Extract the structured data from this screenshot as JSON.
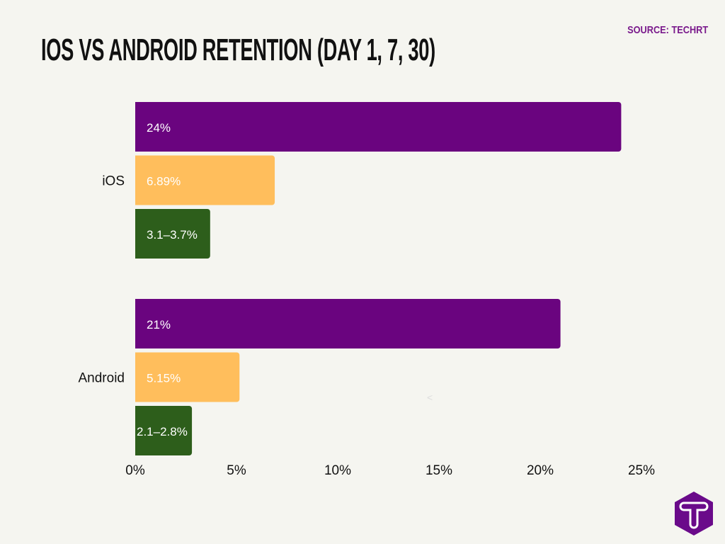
{
  "chart_data": {
    "type": "bar",
    "orientation": "horizontal",
    "title": "IOS VS ANDROID RETENTION (DAY 1, 7, 30)",
    "source": "SOURCE: TECHRT",
    "categories": [
      "iOS",
      "Android"
    ],
    "series": [
      {
        "values": [
          24,
          21
        ],
        "labels": [
          "24%",
          "21%"
        ],
        "color": "#6a047f"
      },
      {
        "values": [
          6.89,
          5.15
        ],
        "labels": [
          "6.89%",
          "5.15%"
        ],
        "color": "#ffbe5c"
      },
      {
        "values": [
          [
            3.1,
            3.7
          ],
          [
            2.1,
            2.8
          ]
        ],
        "labels": [
          "3.1–3.7%",
          "2.1–2.8%"
        ],
        "color": "#2d5e1b"
      }
    ],
    "xlim": [
      0,
      25
    ],
    "xticks": [
      0,
      5,
      10,
      15,
      20,
      25
    ],
    "xtick_labels": [
      "0%",
      "5%",
      "10%",
      "15%",
      "20%",
      "25%"
    ],
    "grid": false,
    "legend": "none"
  },
  "stray_mark": "<",
  "logo": {
    "letter": "T",
    "color": "#6a0a8a"
  }
}
